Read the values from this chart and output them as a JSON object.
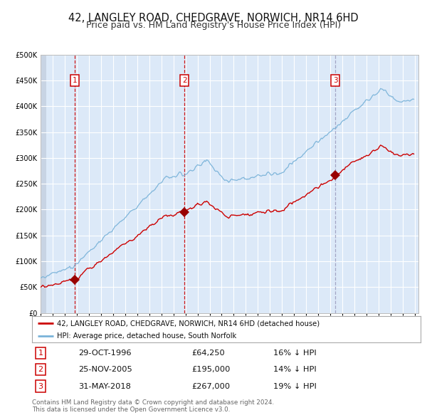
{
  "title1": "42, LANGLEY ROAD, CHEDGRAVE, NORWICH, NR14 6HD",
  "title2": "Price paid vs. HM Land Registry's House Price Index (HPI)",
  "legend_house": "42, LANGLEY ROAD, CHEDGRAVE, NORWICH, NR14 6HD (detached house)",
  "legend_hpi": "HPI: Average price, detached house, South Norfolk",
  "footer1": "Contains HM Land Registry data © Crown copyright and database right 2024.",
  "footer2": "This data is licensed under the Open Government Licence v3.0.",
  "sales": [
    {
      "num": 1,
      "date": "29-OCT-1996",
      "price": 64250,
      "label": "16% ↓ HPI"
    },
    {
      "num": 2,
      "date": "25-NOV-2005",
      "price": 195000,
      "label": "14% ↓ HPI"
    },
    {
      "num": 3,
      "date": "31-MAY-2018",
      "price": 267000,
      "label": "19% ↓ HPI"
    }
  ],
  "sale_years": [
    1996.833,
    2005.917,
    2018.417
  ],
  "sale_prices": [
    64250,
    195000,
    267000
  ],
  "x_start_year": 1994,
  "x_end_year": 2025,
  "ylim_max": 500000,
  "yticks": [
    0,
    50000,
    100000,
    150000,
    200000,
    250000,
    300000,
    350000,
    400000,
    450000,
    500000
  ],
  "background_color": "#dce9f8",
  "grid_color": "#ffffff",
  "hpi_color": "#7ab3d9",
  "house_color": "#cc0000",
  "sale_marker_color": "#990000",
  "vline_red_color": "#cc0000",
  "vline_blue_color": "#9999bb",
  "title1_fontsize": 10.5,
  "title2_fontsize": 9,
  "axis_fontsize": 8,
  "tick_fontsize": 7
}
